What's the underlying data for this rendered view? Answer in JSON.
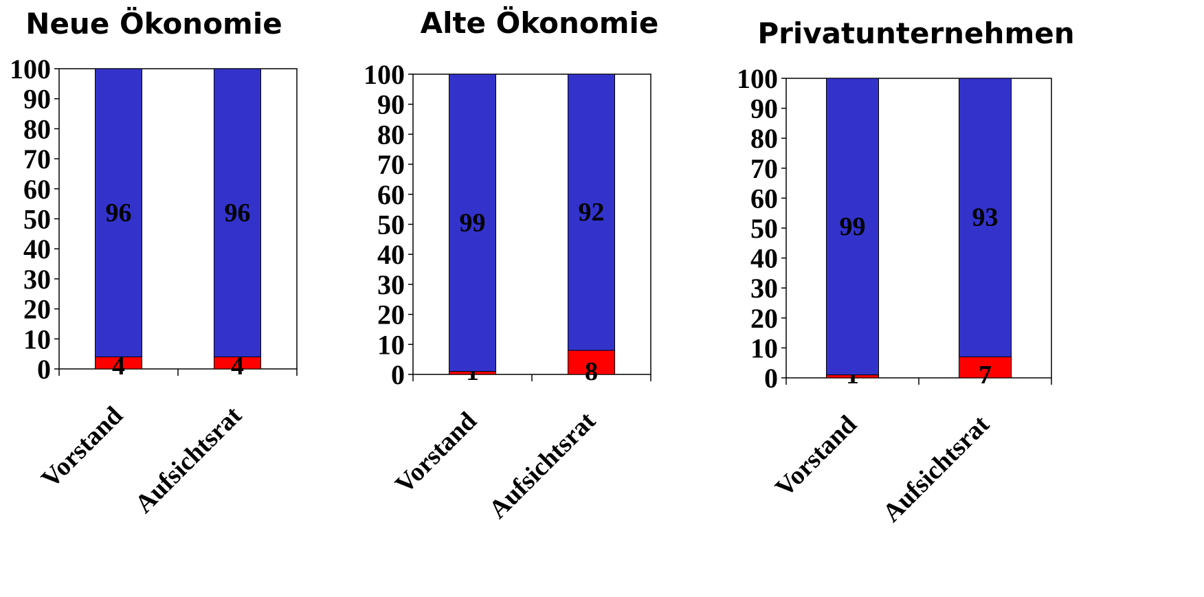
{
  "colors": {
    "women": "#ff0000",
    "men": "#3333cc",
    "frame": "#000000"
  },
  "chart_data": [
    {
      "type": "bar",
      "stacked": true,
      "title": "Neue Ökonomie",
      "categories": [
        "Vorstand",
        "Aufsichtsrat"
      ],
      "ylim": [
        0,
        100
      ],
      "yticks": [
        0,
        10,
        20,
        30,
        40,
        50,
        60,
        70,
        80,
        90,
        100
      ],
      "series": [
        {
          "values": [
            4,
            4
          ],
          "color": "#ff0000"
        },
        {
          "values": [
            96,
            96
          ],
          "color": "#3333cc"
        }
      ]
    },
    {
      "type": "bar",
      "stacked": true,
      "title": "Alte Ökonomie",
      "categories": [
        "Vorstand",
        "Aufsichtsrat"
      ],
      "ylim": [
        0,
        100
      ],
      "yticks": [
        0,
        10,
        20,
        30,
        40,
        50,
        60,
        70,
        80,
        90,
        100
      ],
      "series": [
        {
          "values": [
            1,
            8
          ],
          "color": "#ff0000"
        },
        {
          "values": [
            99,
            92
          ],
          "color": "#3333cc"
        }
      ]
    },
    {
      "type": "bar",
      "stacked": true,
      "title": "Privatunternehmen",
      "categories": [
        "Vorstand",
        "Aufsichtsrat"
      ],
      "ylim": [
        0,
        100
      ],
      "yticks": [
        0,
        10,
        20,
        30,
        40,
        50,
        60,
        70,
        80,
        90,
        100
      ],
      "series": [
        {
          "values": [
            1,
            7
          ],
          "color": "#ff0000"
        },
        {
          "values": [
            99,
            93
          ],
          "color": "#3333cc"
        }
      ]
    }
  ]
}
